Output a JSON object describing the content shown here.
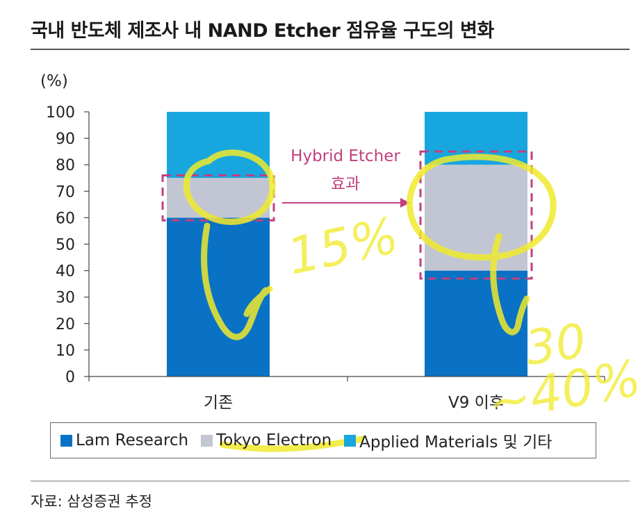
{
  "page": {
    "title": "국내 반도체 제조사 내 NAND Etcher 점유율 구도의 변화",
    "source": "자료: 삼성증권 추정"
  },
  "chart_data": {
    "type": "bar",
    "stacked": true,
    "ylabel": "(%)",
    "ylim": [
      0,
      100
    ],
    "yticks": [
      0,
      10,
      20,
      30,
      40,
      50,
      60,
      70,
      80,
      90,
      100
    ],
    "categories": [
      "기존",
      "V9 이후"
    ],
    "series": [
      {
        "name": "Lam Research",
        "values": [
          60,
          40
        ],
        "color": "#0a72c4"
      },
      {
        "name": "Tokyo Electron",
        "values": [
          15,
          40
        ],
        "color": "#c2c6d2"
      },
      {
        "name": "Applied Materials 및 기타",
        "values": [
          25,
          20
        ],
        "color": "#18a6df"
      }
    ],
    "annotation": {
      "line1": "Hybrid Etcher",
      "line2": "효과",
      "color": "#c0407f"
    },
    "highlights": [
      {
        "category": "기존",
        "range": [
          59,
          76
        ]
      },
      {
        "category": "V9 이후",
        "range": [
          37,
          85
        ]
      }
    ],
    "legend_position": "bottom"
  },
  "handwriting": {
    "note1": "15%",
    "note2": "30",
    "note3": "~40%",
    "color": "#f0ea2c"
  }
}
